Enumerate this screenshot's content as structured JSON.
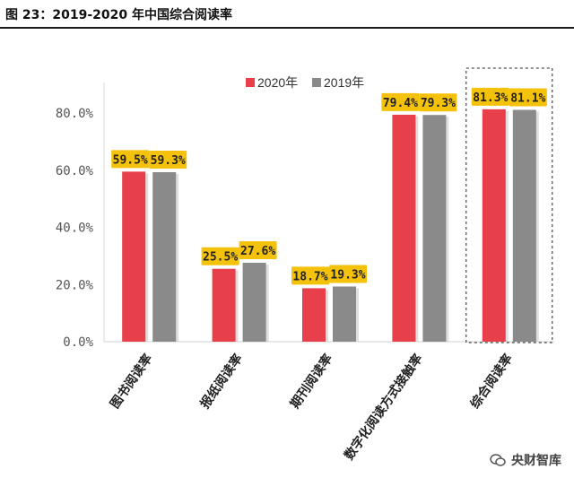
{
  "figure_title": "图 23：2019-2020 年中国综合阅读率",
  "watermark": "央财智库",
  "chart_data": {
    "type": "bar",
    "categories": [
      "图书阅读率",
      "报纸阅读率",
      "期刊阅读率",
      "数字化阅读方式接触率",
      "综合阅读率"
    ],
    "series": [
      {
        "name": "2020年",
        "values": [
          59.5,
          25.5,
          18.7,
          79.4,
          81.3
        ],
        "labels": [
          "59.5%",
          "25.5%",
          "18.7%",
          "79.4%",
          "81.3%"
        ],
        "color": "#e8404a"
      },
      {
        "name": "2019年",
        "values": [
          59.3,
          27.6,
          19.3,
          79.3,
          81.1
        ],
        "labels": [
          "59.3%",
          "27.6%",
          "19.3%",
          "79.3%",
          "81.1%"
        ],
        "color": "#8a8a8a"
      }
    ],
    "ylim": [
      0,
      80
    ],
    "yticks": [
      "0.0%",
      "20.0%",
      "40.0%",
      "60.0%",
      "80.0%"
    ],
    "label_bg": "#f5c20b",
    "highlight_category": "综合阅读率",
    "legend_position": "top-right",
    "grid": false
  }
}
